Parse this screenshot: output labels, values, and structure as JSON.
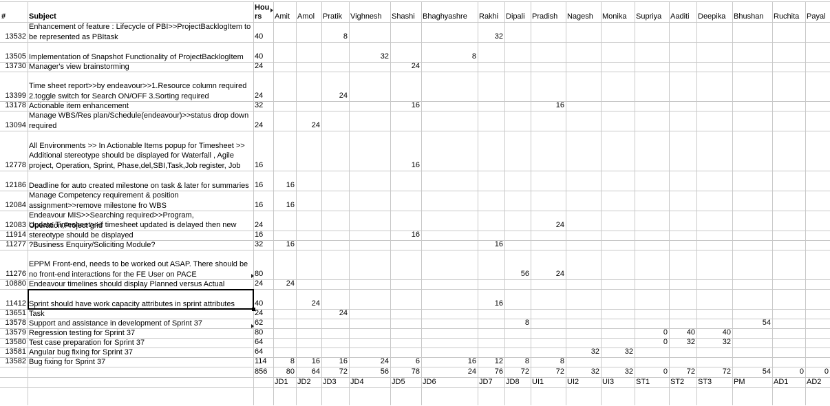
{
  "header": {
    "id": "#",
    "subject": "Subject",
    "hours_line1": "Hou",
    "hours_line2": "rs",
    "people": [
      "Amit",
      "Amol",
      "Pratik",
      "Vighnesh",
      "Shashi",
      "Bhaghyashre",
      "Rakhi",
      "Dipali",
      "Pradish",
      "Nagesh",
      "Monika",
      "Supriya",
      "Aaditi",
      "Deepika",
      "Bhushan",
      "Ruchita",
      "Payal"
    ]
  },
  "rows": [
    {
      "id": "13532",
      "subject": "Enhancement of feature : Lifecycle of PBI>>ProjectBacklogItem to be represented as PBItask",
      "hours": "40",
      "cells": {
        "Pratik": "8",
        "Rakhi": "32"
      }
    },
    {
      "id": "13505",
      "subject": "Implementation of Snapshot Functionality of ProjectBacklogItem",
      "hours": "40",
      "cells": {
        "Vighnesh": "32",
        "Bhaghyashre": "8"
      }
    },
    {
      "id": "13730",
      "subject": "Manager's view brainstorming",
      "hours": "24",
      "cells": {
        "Shashi": "24"
      }
    },
    {
      "id": "13399",
      "subject": "Time sheet report>>by endeavour>>1.Resource column required 2.toggle switch for Search ON/OFF 3.Sorting required",
      "hours": "24",
      "cells": {
        "Pratik": "24"
      }
    },
    {
      "id": "13178",
      "subject": "Actionable item enhancement",
      "hours": "32",
      "cells": {
        "Shashi": "16",
        "Pradish": "16"
      }
    },
    {
      "id": "13094",
      "subject": "Manage WBS/Res plan/Schedule(endeavour)>>status drop down required",
      "hours": "24",
      "cells": {
        "Amol": "24"
      }
    },
    {
      "id": "12778",
      "subject": "All Environments >> In Actionable Items popup for Timesheet >> Additional stereotype should be displayed for Waterfall , Agile project, Operation, Sprint, Phase,del,SBI,Task,Job register, Job",
      "hours": "16",
      "cells": {
        "Shashi": "16"
      }
    },
    {
      "id": "12186",
      "subject": "Deadline for auto created milestone on task & later for summaries",
      "hours": "16",
      "cells": {
        "Amit": "16"
      }
    },
    {
      "id": "12084",
      "subject": "Manage Competency requirement & position assignment>>remove milestone fro WBS",
      "hours": "16",
      "cells": {
        "Amit": "16"
      }
    },
    {
      "id": "12083",
      "subject": "Endeavour MIS>>Searching required>>Program, Operation,Project grid",
      "hours": "24",
      "cells": {
        "Pradish": "24"
      }
    },
    {
      "id": "11914",
      "subject": "Update Timesheet>>if timesheet updated is delayed then new stereotype should be displayed",
      "hours": "16",
      "cells": {
        "Shashi": "16"
      }
    },
    {
      "id": "11277",
      "subject": "?Business Enquiry/Soliciting Module?",
      "hours": "32",
      "cells": {
        "Amit": "16",
        "Rakhi": "16"
      }
    },
    {
      "id": "11276",
      "subject": "EPPM Front-end, needs to be worked out ASAP. There should be no front-end interactions for the FE User on PACE",
      "hours": "80",
      "cells": {
        "Dipali": "56",
        "Pradish": "24"
      }
    },
    {
      "id": "10880",
      "subject": "Endeavour timelines should display Planned versus Actual",
      "hours": "24",
      "cells": {
        "Amit": "24"
      }
    },
    {
      "id": "11412",
      "subject": "Sprint should have work capacity attributes in sprint attributes",
      "hours": "40",
      "cells": {
        "Amol": "24",
        "Rakhi": "16"
      }
    },
    {
      "id": "13651",
      "subject": "Task",
      "hours": "24",
      "cells": {
        "Pratik": "24"
      }
    },
    {
      "id": "13578",
      "subject": "Support and assistance in development of Sprint 37",
      "hours": "62",
      "cells": {
        "Dipali": "8",
        "Bhushan": "54"
      }
    },
    {
      "id": "13579",
      "subject": "Regression testing for Sprint 37",
      "hours": "80",
      "cells": {
        "Supriya": "0",
        "Aaditi": "40",
        "Deepika": "40"
      }
    },
    {
      "id": "13580",
      "subject": "Test case preparation for Sprint 37",
      "hours": "64",
      "cells": {
        "Supriya": "0",
        "Aaditi": "32",
        "Deepika": "32"
      }
    },
    {
      "id": "13581",
      "subject": "Angular bug fixing for Sprint 37",
      "hours": "64",
      "cells": {
        "Nagesh": "32",
        "Monika": "32"
      }
    },
    {
      "id": "13582",
      "subject": "Bug fixing for Sprint 37",
      "hours": "114",
      "cells": {
        "Amit": "8",
        "Amol": "16",
        "Pratik": "16",
        "Vighnesh": "24",
        "Shashi": "6",
        "Bhaghyashre": "16",
        "Rakhi": "12",
        "Dipali": "8",
        "Pradish": "8"
      }
    }
  ],
  "totals": {
    "hours": "856",
    "cells": {
      "Amit": "80",
      "Amol": "64",
      "Pratik": "72",
      "Vighnesh": "56",
      "Shashi": "78",
      "Bhaghyashre": "24",
      "Rakhi": "76",
      "Dipali": "72",
      "Pradish": "72",
      "Nagesh": "32",
      "Monika": "32",
      "Supriya": "0",
      "Aaditi": "72",
      "Deepika": "72",
      "Bhushan": "54",
      "Ruchita": "0",
      "Payal": "0"
    }
  },
  "codes": {
    "Amit": "JD1",
    "Amol": "JD2",
    "Pratik": "JD3",
    "Vighnesh": "JD4",
    "Shashi": "JD5",
    "Bhaghyashre": "JD6",
    "Rakhi": "JD7",
    "Dipali": "JD8",
    "Pradish": "UI1",
    "Nagesh": "UI2",
    "Monika": "UI3",
    "Supriya": "ST1",
    "Aaditi": "ST2",
    "Deepika": "ST3",
    "Bhushan": "PM",
    "Ruchita": "AD1",
    "Payal": "AD2"
  },
  "colors": {
    "grid": "#c8c8c8",
    "selection": "#000000"
  }
}
